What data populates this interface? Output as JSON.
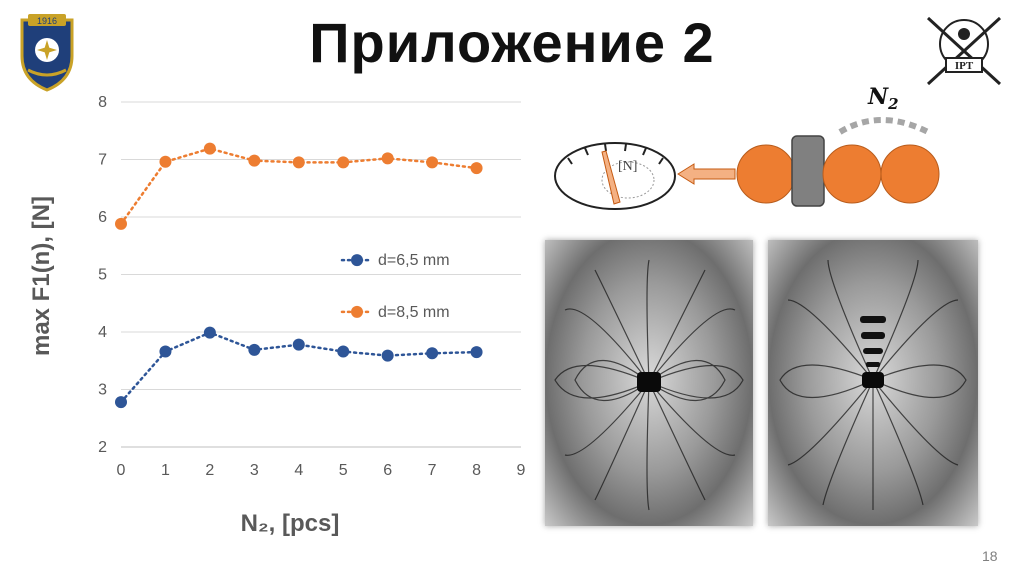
{
  "slide": {
    "title": "Приложение 2",
    "page_number": "18"
  },
  "logos": {
    "left": {
      "icon": "university-crest-icon",
      "text": "1916"
    },
    "right": {
      "icon": "iypt-emblem-icon",
      "text": "IPT"
    }
  },
  "diagram": {
    "label_n2": "N",
    "label_n2_sub": "2",
    "gauge_label": "[N]",
    "colors": {
      "ball": "#ed7d31",
      "magnet": "#808080",
      "arrow": "#f4b183",
      "dots": "#a6a6a6"
    }
  },
  "photos": [
    {
      "icon": "magnetic-field-pattern-photo"
    },
    {
      "icon": "magnetic-field-pattern-chain-photo"
    }
  ],
  "chart_data": {
    "type": "line",
    "xlabel": "N₂, [pcs]",
    "ylabel": "max F1(n), [N]",
    "xlim": [
      0,
      9
    ],
    "ylim": [
      2,
      8
    ],
    "xticks": [
      "0",
      "1",
      "2",
      "3",
      "4",
      "5",
      "6",
      "7",
      "8",
      "9"
    ],
    "yticks": [
      "2",
      "3",
      "4",
      "5",
      "6",
      "7",
      "8"
    ],
    "grid": "horizontal",
    "legend_position": "center-right",
    "x": [
      0,
      1,
      2,
      3,
      4,
      5,
      6,
      7,
      8
    ],
    "series": [
      {
        "name": "d=6,5 mm",
        "color": "#2e5597",
        "values": [
          2.78,
          3.66,
          3.99,
          3.69,
          3.78,
          3.66,
          3.59,
          3.63,
          3.65
        ]
      },
      {
        "name": "d=8,5 mm",
        "color": "#ed7d31",
        "values": [
          5.88,
          6.96,
          7.19,
          6.98,
          6.95,
          6.95,
          7.02,
          6.95,
          6.85
        ]
      }
    ]
  }
}
